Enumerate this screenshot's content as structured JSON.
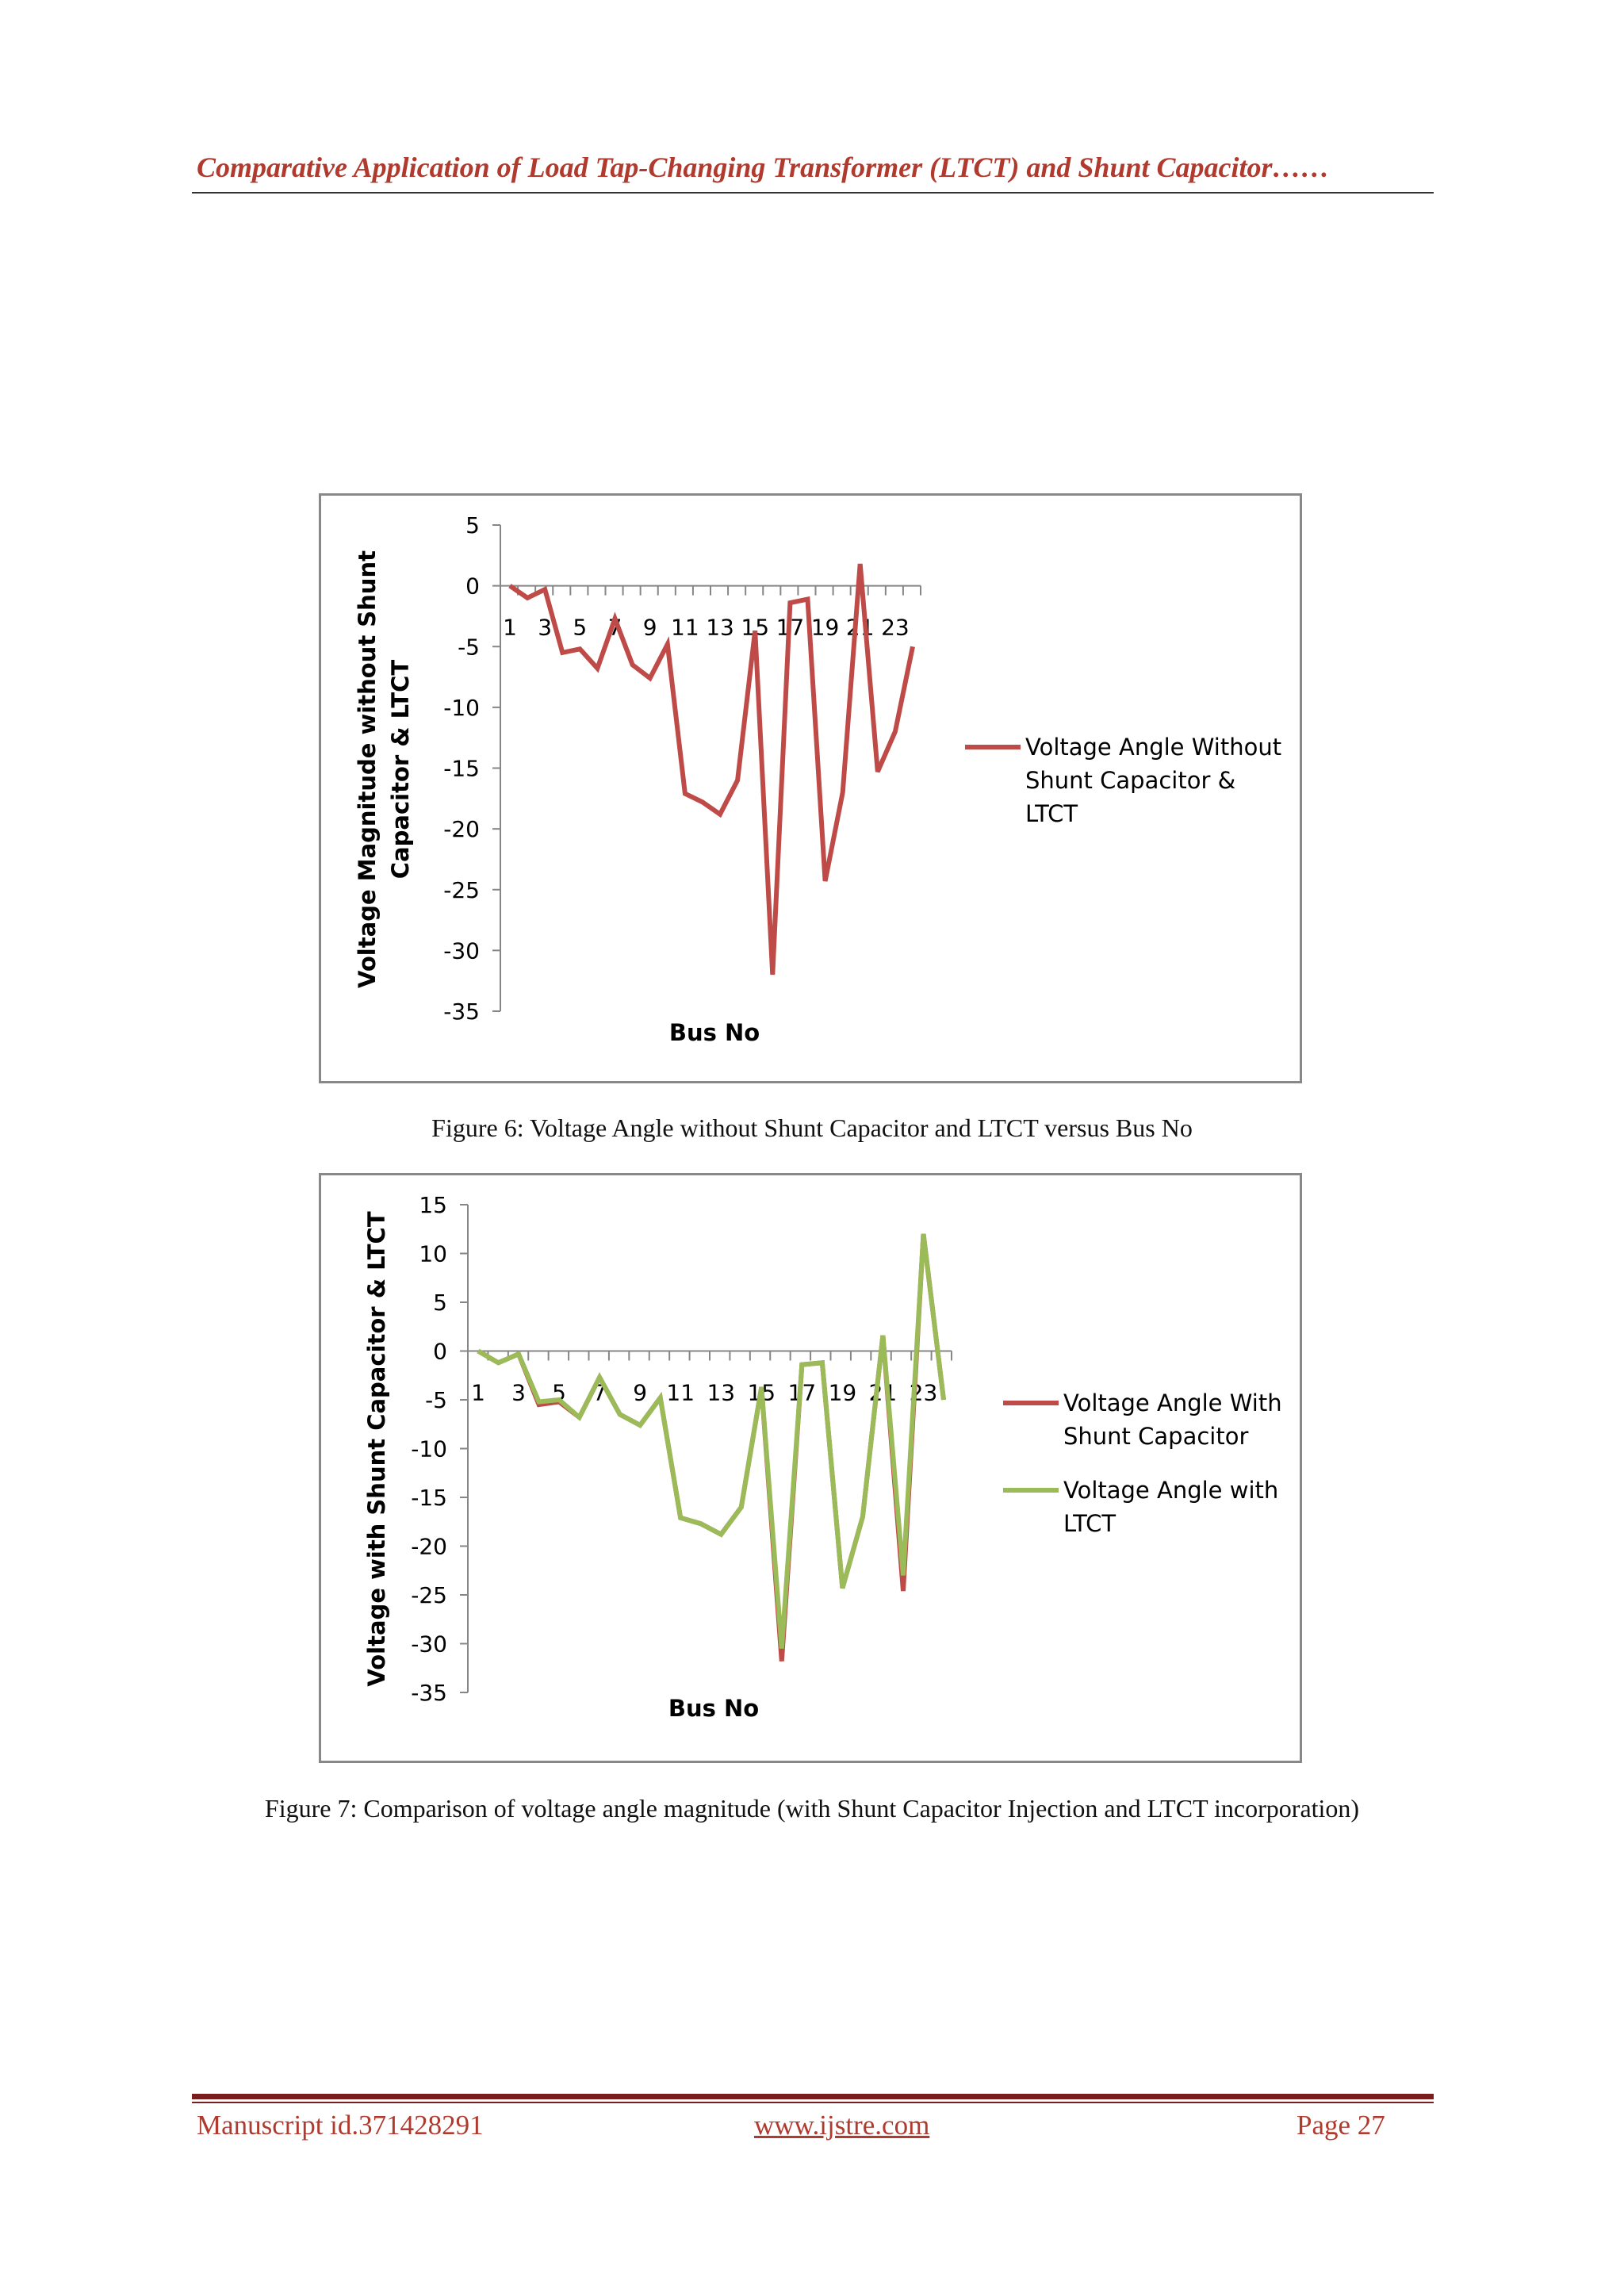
{
  "header": {
    "title": "Comparative Application of Load Tap-Changing Transformer (LTCT) and Shunt Capacitor……"
  },
  "colors": {
    "series_red": "#be4b48",
    "series_green": "#9bbb59",
    "header_text": "#b03a2e",
    "footer_rule": "#7b1d1d"
  },
  "figures": [
    {
      "caption": "Figure 6: Voltage Angle without Shunt Capacitor and LTCT versus Bus No"
    },
    {
      "caption": "Figure 7: Comparison of voltage angle magnitude (with Shunt Capacitor Injection and LTCT incorporation)"
    }
  ],
  "chart_data": [
    {
      "type": "line",
      "ylabel_lines": [
        "Voltage Magnitude without Shunt",
        "Capacitor & LTCT"
      ],
      "xlabel": "Bus No",
      "ylim": [
        -35,
        5
      ],
      "yticks": [
        5,
        0,
        -5,
        -10,
        -15,
        -20,
        -25,
        -30,
        -35
      ],
      "x": [
        1,
        2,
        3,
        4,
        5,
        6,
        7,
        8,
        9,
        10,
        11,
        12,
        13,
        14,
        15,
        16,
        17,
        18,
        19,
        20,
        21,
        22,
        23,
        24
      ],
      "xtick_labels": [
        "1",
        "3",
        "5",
        "7",
        "9",
        "11",
        "13",
        "15",
        "17",
        "19",
        "21",
        "23"
      ],
      "legend": "right",
      "series": [
        {
          "name": "Voltage Angle Without Shunt Capacitor & LTCT",
          "legend_lines": [
            "Voltage Angle Without",
            "Shunt Capacitor &",
            "LTCT"
          ],
          "color": "#be4b48",
          "values": [
            0,
            -1,
            -0.3,
            -5.5,
            -5.2,
            -6.8,
            -2.7,
            -6.5,
            -7.6,
            -4.8,
            -17.1,
            -17.8,
            -18.8,
            -16,
            -3.7,
            -32,
            -1.4,
            -1.1,
            -24.3,
            -17,
            1.8,
            -15.3,
            -12,
            -5
          ]
        }
      ]
    },
    {
      "type": "line",
      "ylabel_lines": [
        "Voltage with Shunt Capacitor & LTCT"
      ],
      "xlabel": "Bus No",
      "ylim": [
        -35,
        15
      ],
      "yticks": [
        15,
        10,
        5,
        0,
        -5,
        -10,
        -15,
        -20,
        -25,
        -30,
        -35
      ],
      "x": [
        1,
        2,
        3,
        4,
        5,
        6,
        7,
        8,
        9,
        10,
        11,
        12,
        13,
        14,
        15,
        16,
        17,
        18,
        19,
        20,
        21,
        22,
        23,
        24
      ],
      "xtick_labels": [
        "1",
        "3",
        "5",
        "7",
        "9",
        "11",
        "13",
        "15",
        "17",
        "19",
        "21",
        "23"
      ],
      "legend": "right",
      "series": [
        {
          "name": "Voltage Angle With Shunt Capacitor",
          "legend_lines": [
            "Voltage Angle With",
            "Shunt Capacitor"
          ],
          "color": "#be4b48",
          "values": [
            0,
            -1.2,
            -0.3,
            -5.5,
            -5.2,
            -6.8,
            -2.7,
            -6.5,
            -7.6,
            -4.8,
            -17.1,
            -17.7,
            -18.8,
            -16,
            -3.7,
            -31.8,
            -1.4,
            -1.2,
            -24.3,
            -17,
            1.6,
            -24.6,
            12,
            -5
          ]
        },
        {
          "name": "Voltage Angle with LTCT",
          "legend_lines": [
            "Voltage Angle with",
            "LTCT"
          ],
          "color": "#9bbb59",
          "values": [
            0,
            -1.2,
            -0.3,
            -5.2,
            -5,
            -6.8,
            -2.7,
            -6.5,
            -7.6,
            -4.8,
            -17.1,
            -17.7,
            -18.8,
            -16,
            -3.7,
            -30.5,
            -1.4,
            -1.2,
            -24.3,
            -17,
            1.6,
            -23,
            12,
            -5
          ]
        }
      ]
    }
  ],
  "footer": {
    "left": "Manuscript id.371428291",
    "center": "www.ijstre.com",
    "right": "Page 27"
  }
}
